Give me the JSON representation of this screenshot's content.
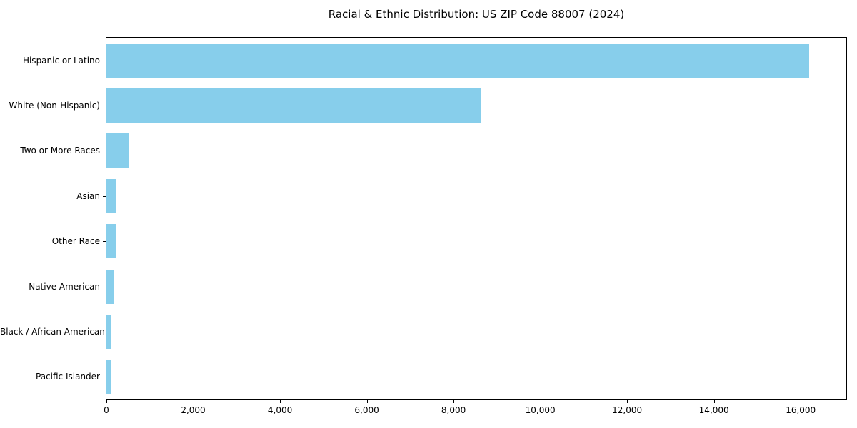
{
  "chart_data": {
    "type": "bar",
    "orientation": "horizontal",
    "title": "Racial & Ethnic Distribution: US ZIP Code 88007 (2024)",
    "categories": [
      "Hispanic or Latino",
      "White (Non-Hispanic)",
      "Two or More Races",
      "Asian",
      "Other Race",
      "Native American",
      "Black / African American",
      "Pacific Islander"
    ],
    "values": [
      16200,
      8640,
      520,
      215,
      210,
      165,
      115,
      95
    ],
    "xlabel": "",
    "ylabel": "",
    "xlim": [
      0,
      17050
    ],
    "xticks": [
      0,
      2000,
      4000,
      6000,
      8000,
      10000,
      12000,
      14000,
      16000
    ],
    "xtick_labels": [
      "0",
      "2,000",
      "4,000",
      "6,000",
      "8,000",
      "10,000",
      "12,000",
      "14,000",
      "16,000"
    ],
    "grid": false,
    "legend": "none",
    "bar_color": "#87CEEB",
    "background_color": "#ffffff",
    "axis_color": "#000000"
  }
}
